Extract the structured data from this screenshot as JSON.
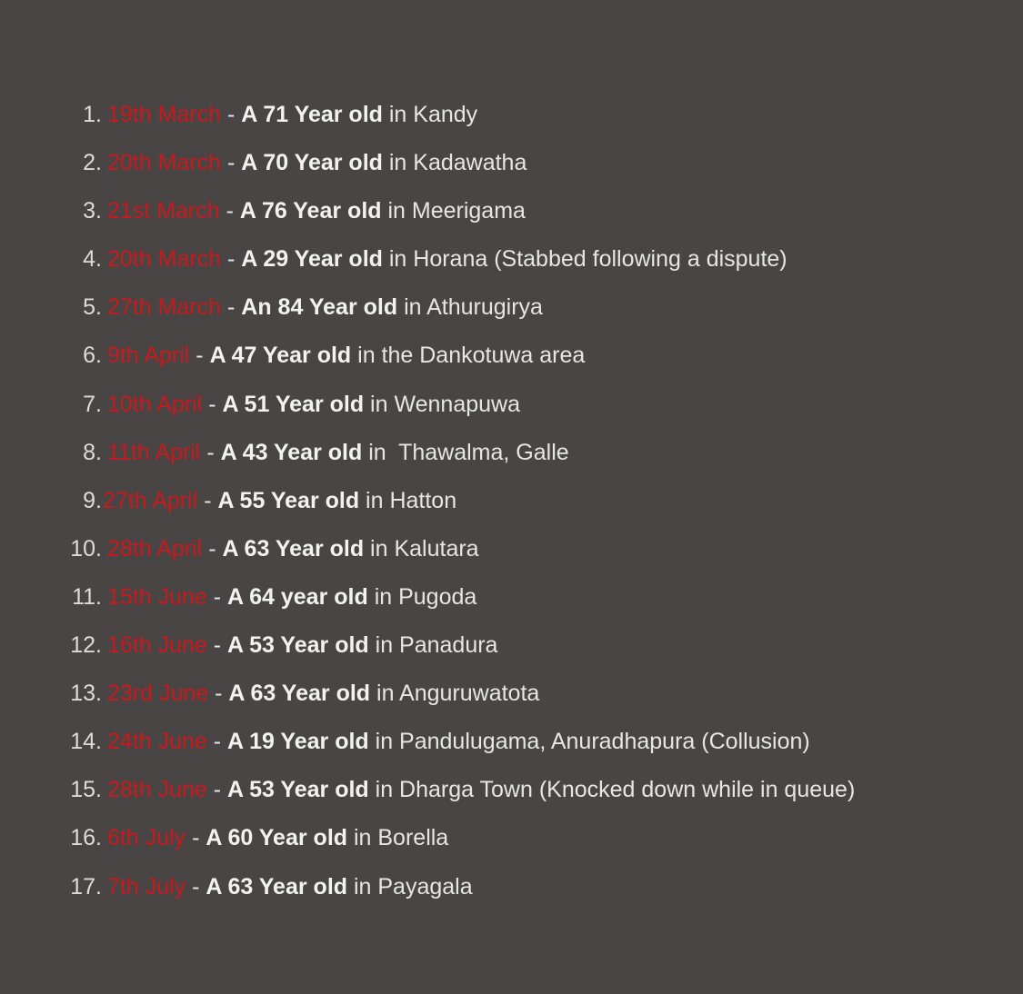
{
  "colors": {
    "background": "#494545",
    "date": "#c8191d",
    "text": "#e6e6e6"
  },
  "items": [
    {
      "number": "1.",
      "date": "19th March",
      "sep": " - ",
      "age": "A 71 Year old",
      "location": " in Kandy"
    },
    {
      "number": "2.",
      "date": "20th March",
      "sep": " - ",
      "age": "A 70 Year old",
      "location": " in Kadawatha"
    },
    {
      "number": "3.",
      "date": "21st March",
      "sep": " - ",
      "age": "A 76 Year old",
      "location": " in Meerigama"
    },
    {
      "number": "4.",
      "date": "20th March",
      "sep": " - ",
      "age": "A 29 Year old",
      "location": " in Horana (Stabbed following a dispute)"
    },
    {
      "number": "5.",
      "date": "27th March",
      "sep": " - ",
      "age": "An 84 Year old",
      "location": " in Athurugirya"
    },
    {
      "number": "6.",
      "date": "9th April",
      "sep": " - ",
      "age": "A 47 Year old",
      "location": " in the Dankotuwa area"
    },
    {
      "number": "7.",
      "date": "10th April",
      "sep": " - ",
      "age": "A 51 Year old",
      "location": " in Wennapuwa"
    },
    {
      "number": "8.",
      "date": "11th April",
      "sep": " - ",
      "age": "A 43 Year old",
      "location": " in  Thawalma, Galle"
    },
    {
      "number": "9.",
      "date": "27th April",
      "sep": " - ",
      "age": "A 55 Year old",
      "location": " in Hatton"
    },
    {
      "number": "10.",
      "date": "28th April",
      "sep": " - ",
      "age": "A 63 Year old",
      "location": " in Kalutara"
    },
    {
      "number": "11.",
      "date": "15th June",
      "sep": " - ",
      "age": "A 64 year old",
      "location": " in Pugoda"
    },
    {
      "number": "12.",
      "date": "16th June",
      "sep": " - ",
      "age": "A 53 Year old",
      "location": " in Panadura"
    },
    {
      "number": "13.",
      "date": "23rd June",
      "sep": " - ",
      "age": "A 63 Year old",
      "location": " in Anguruwatota"
    },
    {
      "number": "14.",
      "date": "24th June",
      "sep": " - ",
      "age": "A 19 Year old",
      "location": " in Pandulugama, Anuradhapura (Collusion)"
    },
    {
      "number": "15.",
      "date": "28th June",
      "sep": " - ",
      "age": "A 53 Year old",
      "location": " in Dharga Town (Knocked down while in queue)"
    },
    {
      "number": "16.",
      "date": "6th July",
      "sep": " - ",
      "age": "A 60 Year old",
      "location": " in Borella"
    },
    {
      "number": "17.",
      "date": "7th July",
      "sep": " - ",
      "age": "A 63 Year old",
      "location": " in Payagala"
    }
  ]
}
